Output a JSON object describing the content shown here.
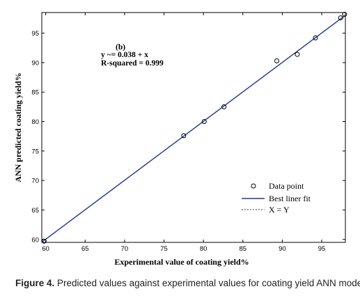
{
  "chart_data": {
    "type": "scatter",
    "panel_label": "(b)",
    "equation_text": "y ~= 0.038 + x",
    "rsquared_text": "R-squared = 0.999",
    "xlabel": "Experimental value of coating yield%",
    "ylabel": "ANN predicted coating yield%",
    "xlim": [
      59.5,
      98
    ],
    "ylim": [
      59.5,
      98.5
    ],
    "xticks": [
      60,
      65,
      70,
      75,
      80,
      85,
      90,
      95
    ],
    "yticks": [
      60,
      65,
      70,
      75,
      80,
      85,
      90,
      95
    ],
    "points": [
      {
        "x": 59.8,
        "y": 59.7
      },
      {
        "x": 77.5,
        "y": 77.6
      },
      {
        "x": 80.1,
        "y": 80.0
      },
      {
        "x": 82.6,
        "y": 82.5
      },
      {
        "x": 89.3,
        "y": 90.3
      },
      {
        "x": 91.9,
        "y": 91.4
      },
      {
        "x": 94.2,
        "y": 94.2
      },
      {
        "x": 97.4,
        "y": 97.6
      },
      {
        "x": 97.9,
        "y": 98.2
      }
    ],
    "fit_line": {
      "intercept": 0.038,
      "slope": 1
    },
    "legend": {
      "position": "bottom-right",
      "entries": [
        {
          "label": "Data point",
          "style": "circle-marker"
        },
        {
          "label": "Best liner fit",
          "style": "solid-line",
          "color": "#1f3c8c"
        },
        {
          "label": "X = Y",
          "style": "dashed-line",
          "color": "#000000"
        }
      ]
    }
  },
  "caption": {
    "label": "Figure 4.",
    "text": " Predicted values against experimental values for coating yield ANN model."
  }
}
